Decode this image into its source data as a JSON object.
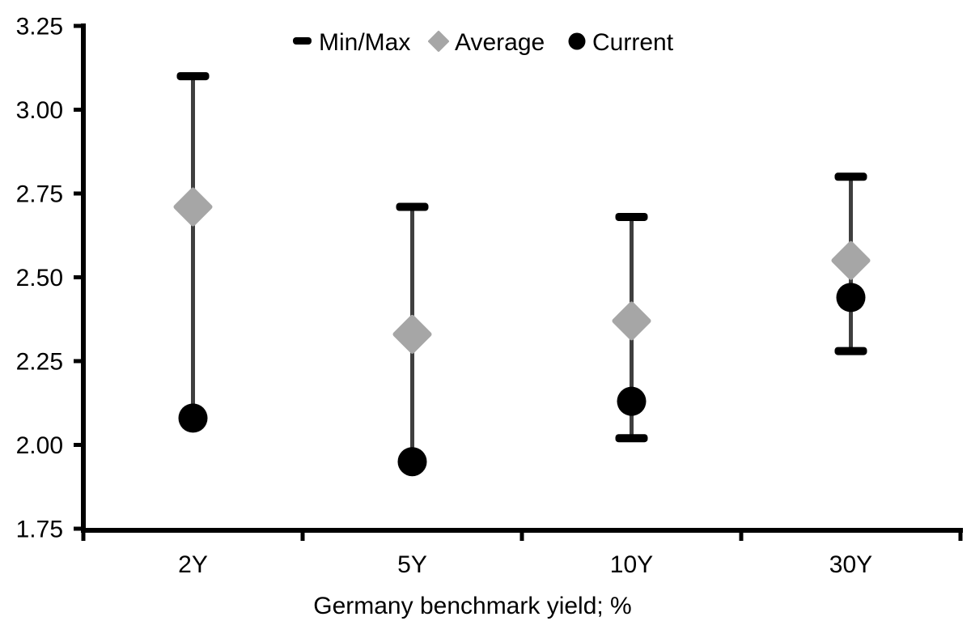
{
  "chart_data": {
    "type": "dot_range",
    "title": "",
    "xlabel": "Germany benchmark yield; %",
    "ylabel": "",
    "categories": [
      "2Y",
      "5Y",
      "10Y",
      "30Y"
    ],
    "series": [
      {
        "name": "Min/Max",
        "marker": "dash",
        "role": "range",
        "min": [
          2.08,
          1.95,
          2.02,
          2.28
        ],
        "max": [
          3.1,
          2.71,
          2.68,
          2.8
        ]
      },
      {
        "name": "Average",
        "marker": "diamond",
        "role": "point",
        "values": [
          2.71,
          2.33,
          2.37,
          2.55
        ]
      },
      {
        "name": "Current",
        "marker": "circle",
        "role": "point",
        "values": [
          2.08,
          1.95,
          2.13,
          2.44
        ]
      }
    ],
    "ylim": [
      1.75,
      3.25
    ],
    "ytick_step": 0.25,
    "ytick_labels": [
      "3.25",
      "3.00",
      "2.75",
      "2.50",
      "2.25",
      "2.00",
      "1.75"
    ],
    "yticks": [
      3.25,
      3.0,
      2.75,
      2.5,
      2.25,
      2.0,
      1.75
    ],
    "legend_position": "top-center",
    "grid": false,
    "colors": {
      "marker_black": "#000000",
      "range_line": "#3f3f3f",
      "average_fill": "#a6a6a6",
      "axis": "#000000",
      "text": "#000000",
      "background": "#ffffff"
    }
  }
}
